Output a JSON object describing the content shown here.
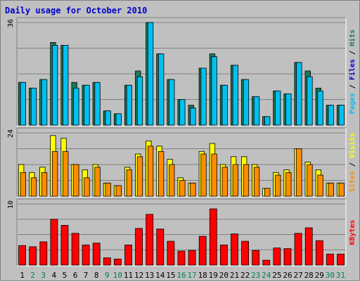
{
  "chart_data": {
    "type": "bar",
    "title": "Daily usage for October 2010",
    "colors": {
      "background": "#c0c0c0",
      "title": "#0000cc",
      "hits": "#00c0f0",
      "files": "#1a7a5a",
      "sites": "#ff8c00",
      "visits": "#ffff00",
      "kbytes": "#ff0000",
      "weekday": "#000000",
      "weekend": "#00805a"
    },
    "days": [
      "1",
      "2",
      "3",
      "4",
      "5",
      "6",
      "7",
      "8",
      "9",
      "10",
      "11",
      "12",
      "13",
      "14",
      "15",
      "16",
      "17",
      "18",
      "19",
      "20",
      "21",
      "22",
      "23",
      "24",
      "25",
      "26",
      "27",
      "28",
      "29",
      "30",
      "31"
    ],
    "weekend_days": [
      "2",
      "3",
      "9",
      "10",
      "16",
      "17",
      "23",
      "24",
      "30",
      "31"
    ],
    "panels": [
      {
        "id": "hits_files",
        "ymax_label": "36",
        "ylim": [
          0,
          36
        ],
        "labels": [
          {
            "text": "Pages",
            "color": "#00c0f0"
          },
          {
            "text": "Files",
            "color": "#0000cc"
          },
          {
            "text": "Hits",
            "color": "#1a7a5a"
          }
        ],
        "series": [
          {
            "name": "Files",
            "color": "#1a7a5a",
            "values": [
              15,
              13,
              16,
              29,
              28,
              15,
              14,
              15,
              5,
              4,
              14,
              19,
              36,
              25,
              16,
              9,
              7,
              20,
              25,
              14,
              21,
              16,
              10,
              3,
              12,
              11,
              22,
              19,
              13,
              7,
              7
            ]
          },
          {
            "name": "Hits",
            "color": "#00c0f0",
            "values": [
              15,
              13,
              16,
              28,
              28,
              13,
              14,
              15,
              5,
              4,
              14,
              17,
              36,
              25,
              16,
              9,
              6,
              20,
              24,
              14,
              21,
              16,
              10,
              3,
              12,
              11,
              22,
              17,
              12,
              7,
              7
            ]
          }
        ]
      },
      {
        "id": "sites_visits",
        "ymax_label": "24",
        "ylim": [
          0,
          24
        ],
        "labels": [
          {
            "text": "Sites",
            "color": "#ff8c00"
          },
          {
            "text": "Visits",
            "color": "#ffff00"
          }
        ],
        "series": [
          {
            "name": "Visits",
            "color": "#ffff00",
            "values": [
              12,
              9,
              11,
              23,
              22,
              12,
              10,
              12,
              5,
              4,
              11,
              16,
              21,
              19,
              14,
              7,
              5,
              17,
              20,
              12,
              15,
              15,
              12,
              3,
              9,
              10,
              18,
              13,
              10,
              5,
              5
            ]
          },
          {
            "name": "Sites",
            "color": "#ff8c00",
            "values": [
              9,
              7,
              9,
              17,
              17,
              12,
              7,
              11,
              5,
              4,
              10,
              15,
              19,
              17,
              12,
              6,
              5,
              16,
              16,
              11,
              12,
              12,
              11,
              3,
              8,
              9,
              18,
              12,
              8,
              5,
              5
            ]
          }
        ]
      },
      {
        "id": "kbytes",
        "ymax_label": "10",
        "ylim": [
          0,
          10
        ],
        "labels": [
          {
            "text": "KBytes",
            "color": "#ff0000"
          }
        ],
        "series": [
          {
            "name": "KBytes",
            "color": "#ff0000",
            "values": [
              3.2,
              3.0,
              3.8,
              7.5,
              6.5,
              5.2,
              3.3,
              3.6,
              1.2,
              1.0,
              3.3,
              6.0,
              8.3,
              5.9,
              3.9,
              2.3,
              2.4,
              4.7,
              9.2,
              3.3,
              5.1,
              3.9,
              2.4,
              0.8,
              2.8,
              2.7,
              5.2,
              6.1,
              4.0,
              1.8,
              1.8
            ]
          }
        ]
      }
    ]
  }
}
